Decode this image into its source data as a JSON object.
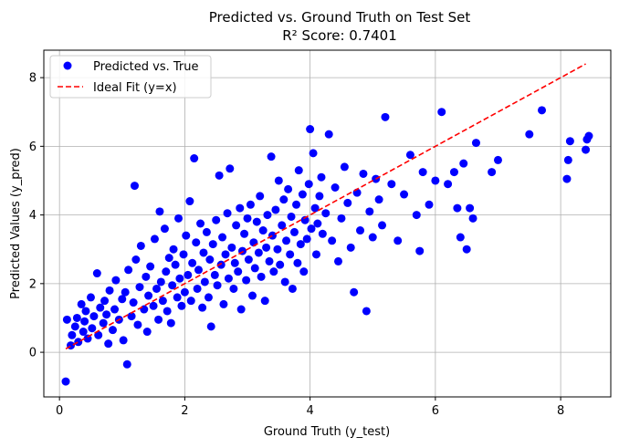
{
  "chart_data": {
    "type": "scatter",
    "title": "Predicted vs. Ground Truth on Test Set",
    "subtitle": "R² Score: 0.7401",
    "xlabel": "Ground Truth (y_test)",
    "ylabel": "Predicted Values (y_pred)",
    "xlim": [
      -0.25,
      8.8
    ],
    "ylim": [
      -1.3,
      8.8
    ],
    "xticks": [
      0,
      2,
      4,
      6,
      8
    ],
    "yticks": [
      0,
      2,
      4,
      6,
      8
    ],
    "grid": true,
    "legend_position": "top-left",
    "series": [
      {
        "name": "Predicted vs. True",
        "kind": "scatter",
        "color": "#0000ff",
        "points": [
          [
            0.1,
            -0.85
          ],
          [
            0.12,
            0.95
          ],
          [
            0.18,
            0.2
          ],
          [
            0.2,
            0.5
          ],
          [
            0.25,
            0.75
          ],
          [
            0.28,
            1.0
          ],
          [
            0.3,
            0.3
          ],
          [
            0.35,
            1.4
          ],
          [
            0.38,
            0.6
          ],
          [
            0.4,
            0.9
          ],
          [
            0.42,
            1.2
          ],
          [
            0.45,
            0.4
          ],
          [
            0.5,
            1.6
          ],
          [
            0.52,
            0.7
          ],
          [
            0.55,
            1.05
          ],
          [
            0.6,
            2.3
          ],
          [
            0.62,
            0.5
          ],
          [
            0.65,
            1.3
          ],
          [
            0.7,
            0.85
          ],
          [
            0.72,
            1.5
          ],
          [
            0.75,
            1.1
          ],
          [
            0.78,
            0.25
          ],
          [
            0.8,
            1.8
          ],
          [
            0.85,
            0.65
          ],
          [
            0.88,
            1.25
          ],
          [
            0.9,
            2.1
          ],
          [
            0.95,
            0.95
          ],
          [
            1.0,
            1.55
          ],
          [
            1.02,
            0.35
          ],
          [
            1.05,
            1.75
          ],
          [
            1.08,
            -0.35
          ],
          [
            1.1,
            2.4
          ],
          [
            1.15,
            1.05
          ],
          [
            1.18,
            1.45
          ],
          [
            1.2,
            4.85
          ],
          [
            1.22,
            2.7
          ],
          [
            1.25,
            0.8
          ],
          [
            1.28,
            1.9
          ],
          [
            1.3,
            3.1
          ],
          [
            1.35,
            1.25
          ],
          [
            1.38,
            2.2
          ],
          [
            1.4,
            0.6
          ],
          [
            1.42,
            1.65
          ],
          [
            1.45,
            2.5
          ],
          [
            1.5,
            1.35
          ],
          [
            1.52,
            3.3
          ],
          [
            1.55,
            1.85
          ],
          [
            1.58,
            0.95
          ],
          [
            1.6,
            4.1
          ],
          [
            1.62,
            2.05
          ],
          [
            1.65,
            1.5
          ],
          [
            1.68,
            3.6
          ],
          [
            1.7,
            2.35
          ],
          [
            1.72,
            1.2
          ],
          [
            1.75,
            2.75
          ],
          [
            1.78,
            0.85
          ],
          [
            1.8,
            1.95
          ],
          [
            1.82,
            3.0
          ],
          [
            1.85,
            2.55
          ],
          [
            1.88,
            1.6
          ],
          [
            1.9,
            3.9
          ],
          [
            1.92,
            2.15
          ],
          [
            1.95,
            1.35
          ],
          [
            1.98,
            2.85
          ],
          [
            2.0,
            1.75
          ],
          [
            2.02,
            3.4
          ],
          [
            2.05,
            2.25
          ],
          [
            2.08,
            4.4
          ],
          [
            2.1,
            1.5
          ],
          [
            2.12,
            2.6
          ],
          [
            2.15,
            5.65
          ],
          [
            2.18,
            3.2
          ],
          [
            2.2,
            1.85
          ],
          [
            2.22,
            2.4
          ],
          [
            2.25,
            3.75
          ],
          [
            2.28,
            1.3
          ],
          [
            2.3,
            2.9
          ],
          [
            2.32,
            2.05
          ],
          [
            2.35,
            3.5
          ],
          [
            2.38,
            1.6
          ],
          [
            2.4,
            2.7
          ],
          [
            2.42,
            0.75
          ],
          [
            2.45,
            3.15
          ],
          [
            2.48,
            2.25
          ],
          [
            2.5,
            3.85
          ],
          [
            2.52,
            1.95
          ],
          [
            2.55,
            5.15
          ],
          [
            2.58,
            2.55
          ],
          [
            2.6,
            3.35
          ],
          [
            2.62,
            1.4
          ],
          [
            2.65,
            2.85
          ],
          [
            2.68,
            4.05
          ],
          [
            2.7,
            2.15
          ],
          [
            2.72,
            5.35
          ],
          [
            2.75,
            3.05
          ],
          [
            2.78,
            1.85
          ],
          [
            2.8,
            2.6
          ],
          [
            2.82,
            3.7
          ],
          [
            2.85,
            2.35
          ],
          [
            2.88,
            4.2
          ],
          [
            2.9,
            1.25
          ],
          [
            2.92,
            2.95
          ],
          [
            2.95,
            3.45
          ],
          [
            2.98,
            2.1
          ],
          [
            3.0,
            3.9
          ],
          [
            3.02,
            2.7
          ],
          [
            3.05,
            4.3
          ],
          [
            3.08,
            1.65
          ],
          [
            3.1,
            3.2
          ],
          [
            3.12,
            2.45
          ],
          [
            3.15,
            3.8
          ],
          [
            3.18,
            2.9
          ],
          [
            3.2,
            4.55
          ],
          [
            3.22,
            2.2
          ],
          [
            3.25,
            3.55
          ],
          [
            3.28,
            1.5
          ],
          [
            3.3,
            3.05
          ],
          [
            3.32,
            4.0
          ],
          [
            3.35,
            2.65
          ],
          [
            3.38,
            5.7
          ],
          [
            3.4,
            3.4
          ],
          [
            3.42,
            2.35
          ],
          [
            3.45,
            4.15
          ],
          [
            3.48,
            3.0
          ],
          [
            3.5,
            5.0
          ],
          [
            3.52,
            2.55
          ],
          [
            3.55,
            3.7
          ],
          [
            3.58,
            4.45
          ],
          [
            3.6,
            2.05
          ],
          [
            3.62,
            3.25
          ],
          [
            3.65,
            4.75
          ],
          [
            3.68,
            2.85
          ],
          [
            3.7,
            3.95
          ],
          [
            3.72,
            1.85
          ],
          [
            3.75,
            3.5
          ],
          [
            3.78,
            4.3
          ],
          [
            3.8,
            2.6
          ],
          [
            3.82,
            5.3
          ],
          [
            3.85,
            3.15
          ],
          [
            3.88,
            4.6
          ],
          [
            3.9,
            2.35
          ],
          [
            3.92,
            3.85
          ],
          [
            3.95,
            3.3
          ],
          [
            3.98,
            4.9
          ],
          [
            4.0,
            6.5
          ],
          [
            4.02,
            3.6
          ],
          [
            4.05,
            5.8
          ],
          [
            4.08,
            4.2
          ],
          [
            4.1,
            2.85
          ],
          [
            4.12,
            3.75
          ],
          [
            4.15,
            4.55
          ],
          [
            4.18,
            5.1
          ],
          [
            4.2,
            3.45
          ],
          [
            4.25,
            4.05
          ],
          [
            4.3,
            6.35
          ],
          [
            4.35,
            3.25
          ],
          [
            4.4,
            4.8
          ],
          [
            4.45,
            2.65
          ],
          [
            4.5,
            3.9
          ],
          [
            4.55,
            5.4
          ],
          [
            4.6,
            4.35
          ],
          [
            4.65,
            3.05
          ],
          [
            4.7,
            1.75
          ],
          [
            4.75,
            4.65
          ],
          [
            4.8,
            3.55
          ],
          [
            4.85,
            5.2
          ],
          [
            4.9,
            1.2
          ],
          [
            4.95,
            4.1
          ],
          [
            5.0,
            3.35
          ],
          [
            5.05,
            5.05
          ],
          [
            5.1,
            4.45
          ],
          [
            5.15,
            3.7
          ],
          [
            5.2,
            6.85
          ],
          [
            5.3,
            4.9
          ],
          [
            5.4,
            3.25
          ],
          [
            5.5,
            4.6
          ],
          [
            5.6,
            5.75
          ],
          [
            5.7,
            4.0
          ],
          [
            5.75,
            2.95
          ],
          [
            5.8,
            5.25
          ],
          [
            5.9,
            4.3
          ],
          [
            6.0,
            5.0
          ],
          [
            6.1,
            7.0
          ],
          [
            6.2,
            4.9
          ],
          [
            6.3,
            5.25
          ],
          [
            6.35,
            4.2
          ],
          [
            6.4,
            3.35
          ],
          [
            6.45,
            5.5
          ],
          [
            6.5,
            3.0
          ],
          [
            6.55,
            4.2
          ],
          [
            6.6,
            3.9
          ],
          [
            6.65,
            6.1
          ],
          [
            6.9,
            5.25
          ],
          [
            7.0,
            5.6
          ],
          [
            7.5,
            6.35
          ],
          [
            7.7,
            7.05
          ],
          [
            8.1,
            5.05
          ],
          [
            8.12,
            5.6
          ],
          [
            8.15,
            6.15
          ],
          [
            8.4,
            5.9
          ],
          [
            8.42,
            6.2
          ],
          [
            8.45,
            6.3
          ]
        ]
      },
      {
        "name": "Ideal Fit (y=x)",
        "kind": "line",
        "color": "#ff0000",
        "dash": "dashed",
        "points": [
          [
            0.1,
            0.1
          ],
          [
            8.4,
            8.4
          ]
        ]
      }
    ]
  }
}
